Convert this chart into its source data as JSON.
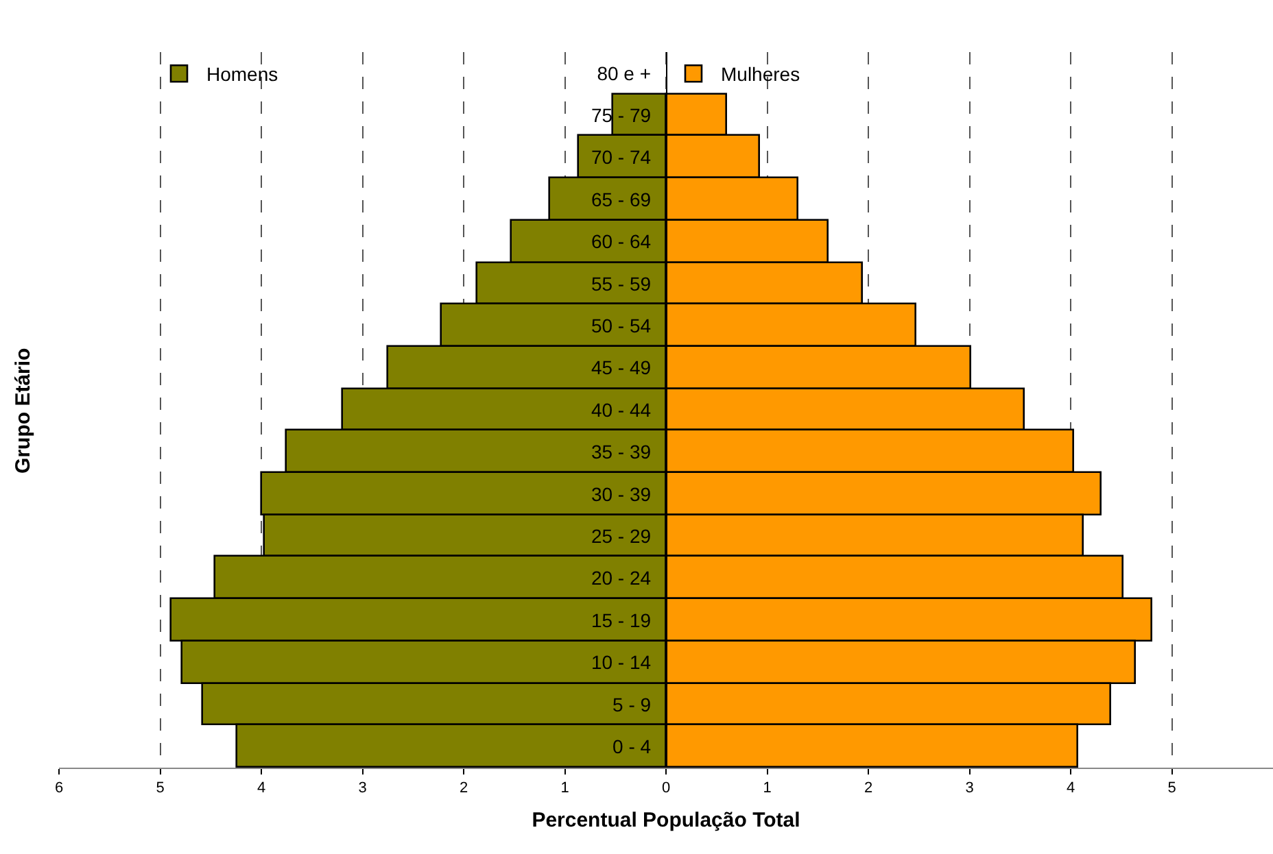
{
  "chart_data": {
    "type": "bar",
    "orientation": "horizontal",
    "xlabel": "Percentual População Total",
    "ylabel": "Grupo Etário",
    "categories": [
      "80 e +",
      "75 - 79",
      "70 - 74",
      "65 - 69",
      "60 - 64",
      "55 - 59",
      "50 - 54",
      "45 - 49",
      "40 - 44",
      "35 - 39",
      "30 - 39",
      "25 - 29",
      "20 - 24",
      "15 - 19",
      "10 - 14",
      "5 - 9",
      "0 - 4"
    ],
    "series": [
      {
        "name": "Homens",
        "color": "#808000",
        "values": [
          null,
          -0.52,
          -0.86,
          -1.14,
          -1.53,
          -1.87,
          -2.22,
          -2.74,
          -3.2,
          -3.75,
          -3.99,
          -3.97,
          -4.45,
          -4.89,
          -4.78,
          -4.57,
          -4.24
        ]
      },
      {
        "name": "Mulheres",
        "color": "#ff9900",
        "values": [
          null,
          0.61,
          0.93,
          1.31,
          1.6,
          1.94,
          2.47,
          3.02,
          3.54,
          4.04,
          4.31,
          4.13,
          4.52,
          4.81,
          4.64,
          4.4,
          4.08
        ]
      }
    ],
    "xlim": [
      -6,
      6
    ],
    "xticks": [
      {
        "value": -6,
        "label": "6"
      },
      {
        "value": -5,
        "label": "5"
      },
      {
        "value": -4,
        "label": "4"
      },
      {
        "value": -3,
        "label": "3"
      },
      {
        "value": -2,
        "label": "2"
      },
      {
        "value": -1,
        "label": "1"
      },
      0,
      1,
      2,
      3,
      4,
      5
    ],
    "stacked": true,
    "grid": "x",
    "line_style": "dashed",
    "legend": "top"
  }
}
